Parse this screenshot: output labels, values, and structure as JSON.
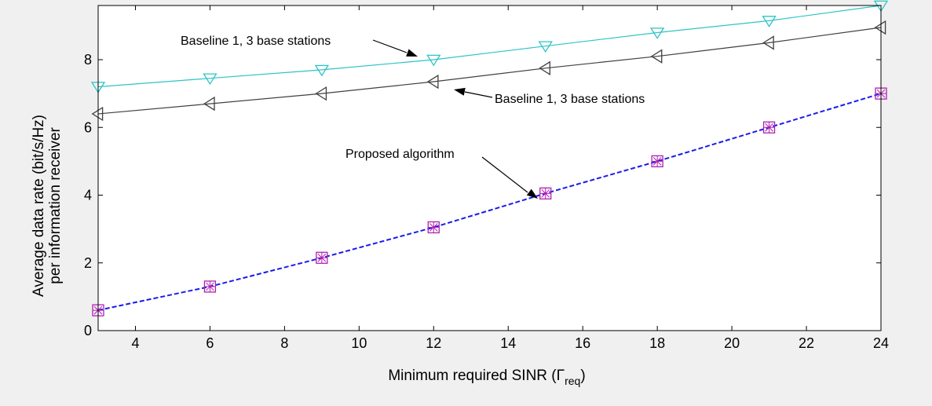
{
  "chart_data": {
    "type": "line",
    "xlabel": "Minimum required SINR (",
    "xlabel_symbol": "Γ",
    "xlabel_subscript": "req",
    "xlabel_close": ")",
    "ylabel_line1": "Average data rate (bit/s/Hz)",
    "ylabel_line2": "per information receiver",
    "xlim": [
      3,
      24
    ],
    "ylim": [
      0,
      9.6
    ],
    "xticks": [
      4,
      6,
      8,
      10,
      12,
      14,
      16,
      18,
      20,
      22,
      24
    ],
    "yticks": [
      0,
      2,
      4,
      6,
      8
    ],
    "x": [
      3,
      6,
      9,
      12,
      15,
      18,
      21,
      24
    ],
    "grid": false,
    "series": [
      {
        "key": "cyan",
        "values": [
          7.2,
          7.45,
          7.7,
          8.0,
          8.4,
          8.8,
          9.15,
          9.6
        ],
        "color": "#2ec4c4",
        "marker": "triangle-down",
        "dash": false
      },
      {
        "key": "black",
        "values": [
          6.4,
          6.7,
          7.0,
          7.35,
          7.75,
          8.1,
          8.5,
          8.95
        ],
        "color": "#404040",
        "marker": "triangle-left",
        "dash": false
      },
      {
        "key": "blue",
        "values": [
          0.6,
          1.3,
          2.15,
          3.05,
          4.05,
          5.0,
          6.0,
          7.0
        ],
        "color": "#1a1aee",
        "marker": "square-star",
        "marker_color": "#b020b0",
        "dash": true
      }
    ],
    "annotations": [
      {
        "text": "Baseline 1, 3 base stations",
        "target_x": 12,
        "target_y": 8.0
      },
      {
        "text": "Baseline 1, 3 base stations",
        "target_x": 12.5,
        "target_y": 7.2
      },
      {
        "text": "Proposed algorithm",
        "target_x": 15,
        "target_y": 4.0
      }
    ]
  }
}
